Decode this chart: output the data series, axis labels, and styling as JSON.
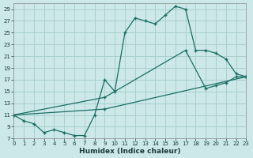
{
  "xlabel": "Humidex (Indice chaleur)",
  "bg_color": "#cce8e8",
  "grid_color": "#aacfcf",
  "line_color": "#1a6e65",
  "ylim": [
    7,
    30
  ],
  "xlim": [
    0,
    23
  ],
  "yticks": [
    7,
    9,
    11,
    13,
    15,
    17,
    19,
    21,
    23,
    25,
    27,
    29
  ],
  "xticks": [
    0,
    1,
    2,
    3,
    4,
    5,
    6,
    7,
    8,
    9,
    10,
    11,
    12,
    13,
    14,
    15,
    16,
    17,
    18,
    19,
    20,
    21,
    22,
    23
  ],
  "series1_x": [
    0,
    1,
    2,
    3,
    4,
    5,
    6,
    7,
    8,
    9,
    10,
    11,
    12,
    13,
    14,
    15,
    16,
    17,
    18,
    19,
    20,
    21,
    22,
    23
  ],
  "series1_y": [
    11,
    10,
    9.5,
    8,
    8.5,
    8,
    7.5,
    7.5,
    11,
    17,
    15,
    25,
    27.5,
    27,
    26.5,
    28,
    29.5,
    29,
    22,
    22,
    21.5,
    20.5,
    18,
    17.5
  ],
  "series2_x": [
    0,
    9,
    17,
    19,
    20,
    21,
    22,
    23
  ],
  "series2_y": [
    11,
    14,
    22,
    15.5,
    16,
    16.5,
    17.5,
    17.5
  ],
  "series3_x": [
    0,
    9,
    23
  ],
  "series3_y": [
    11,
    12,
    17.5
  ]
}
